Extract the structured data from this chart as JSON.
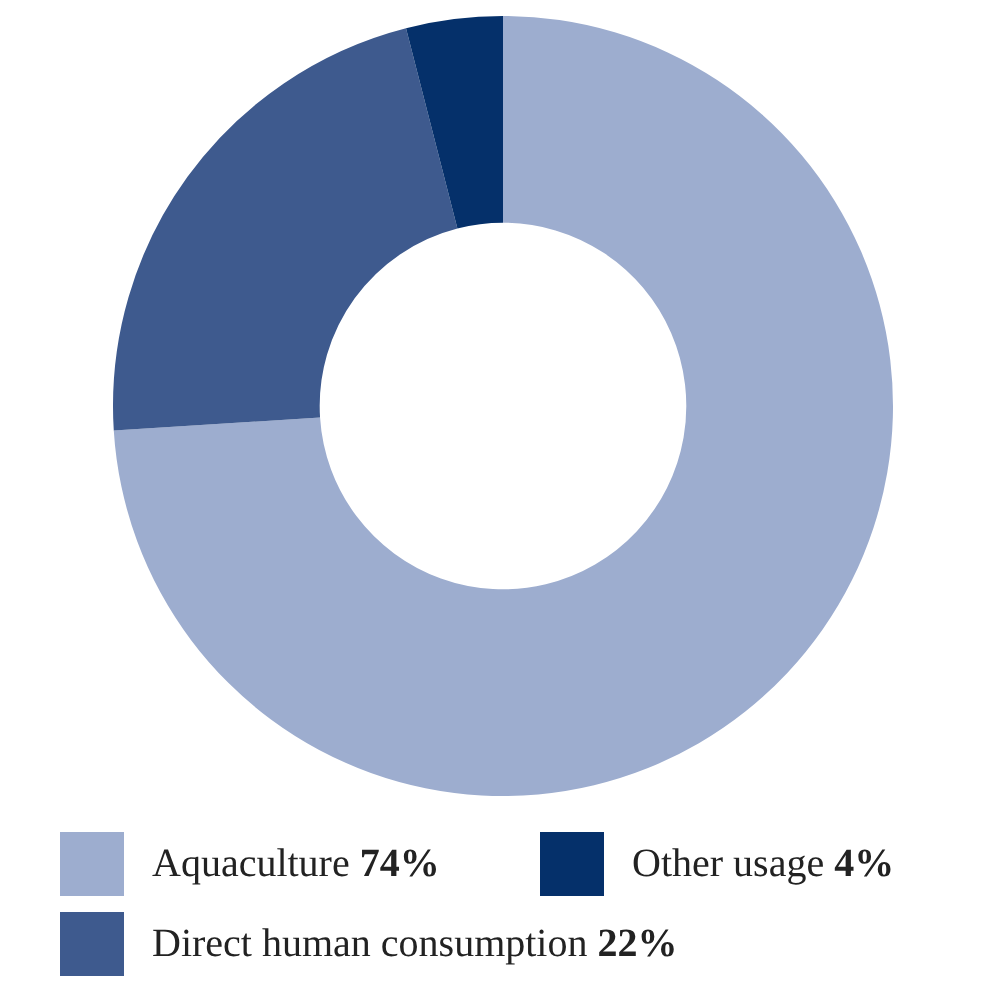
{
  "chart_data": {
    "type": "donut",
    "categories": [
      "Aquaculture",
      "Direct human consumption",
      "Other usage"
    ],
    "values": [
      74,
      22,
      4
    ],
    "value_labels": [
      "74%",
      "22%",
      "4%"
    ],
    "colors": [
      "#9dadcf",
      "#3e5a8e",
      "#05306a"
    ],
    "legend": "bottom"
  }
}
